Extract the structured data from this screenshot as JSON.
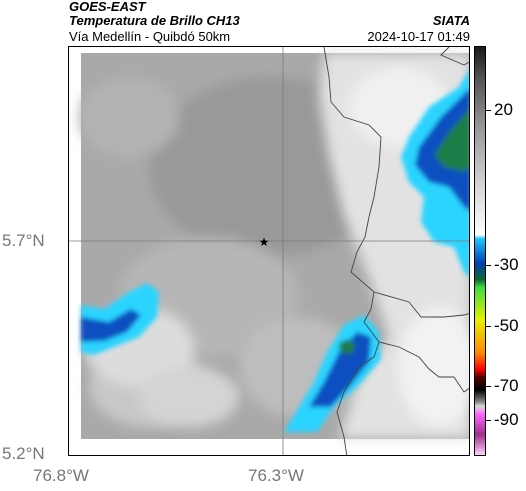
{
  "header": {
    "satellite": "GOES-EAST",
    "product": "Temperatura de Brillo CH13",
    "org": "SIATA",
    "region": "Vía Medellín - Quibdó 50km",
    "datetime": "2024-10-17 01:49"
  },
  "axes": {
    "lat_ticks": [
      "5.7°N",
      "5.2°N"
    ],
    "lon_ticks": [
      "76.8°W",
      "76.3°W"
    ]
  },
  "colorbar": {
    "ticks": [
      "20",
      "-30",
      "-50",
      "-70",
      "-90"
    ]
  },
  "marker": {
    "symbol": "★",
    "name": "reference-star"
  },
  "colors": {
    "background": "#a8a8a8",
    "cloud_light": "#e4e4e4",
    "cold_cyan": "#00c8ff",
    "cold_blue": "#0a3fae",
    "coldest_green": "#1e8a3a"
  }
}
